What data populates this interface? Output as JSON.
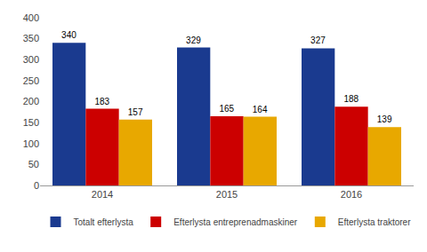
{
  "chart_data": {
    "type": "bar",
    "categories": [
      "2014",
      "2015",
      "2016"
    ],
    "series": [
      {
        "name": "Totalt efterlysta",
        "color": "#1a3a8f",
        "values": [
          340,
          329,
          327
        ]
      },
      {
        "name": "Efterlysta entreprenadmaskiner",
        "color": "#cc0000",
        "values": [
          183,
          165,
          188
        ]
      },
      {
        "name": "Efterlysta traktorer",
        "color": "#e8a800",
        "values": [
          157,
          164,
          139
        ]
      }
    ],
    "ylim": [
      0,
      400
    ],
    "yticks": [
      0,
      50,
      100,
      150,
      200,
      250,
      300,
      350,
      400
    ],
    "grid": false,
    "legend": "bottom",
    "data_labels": true
  }
}
